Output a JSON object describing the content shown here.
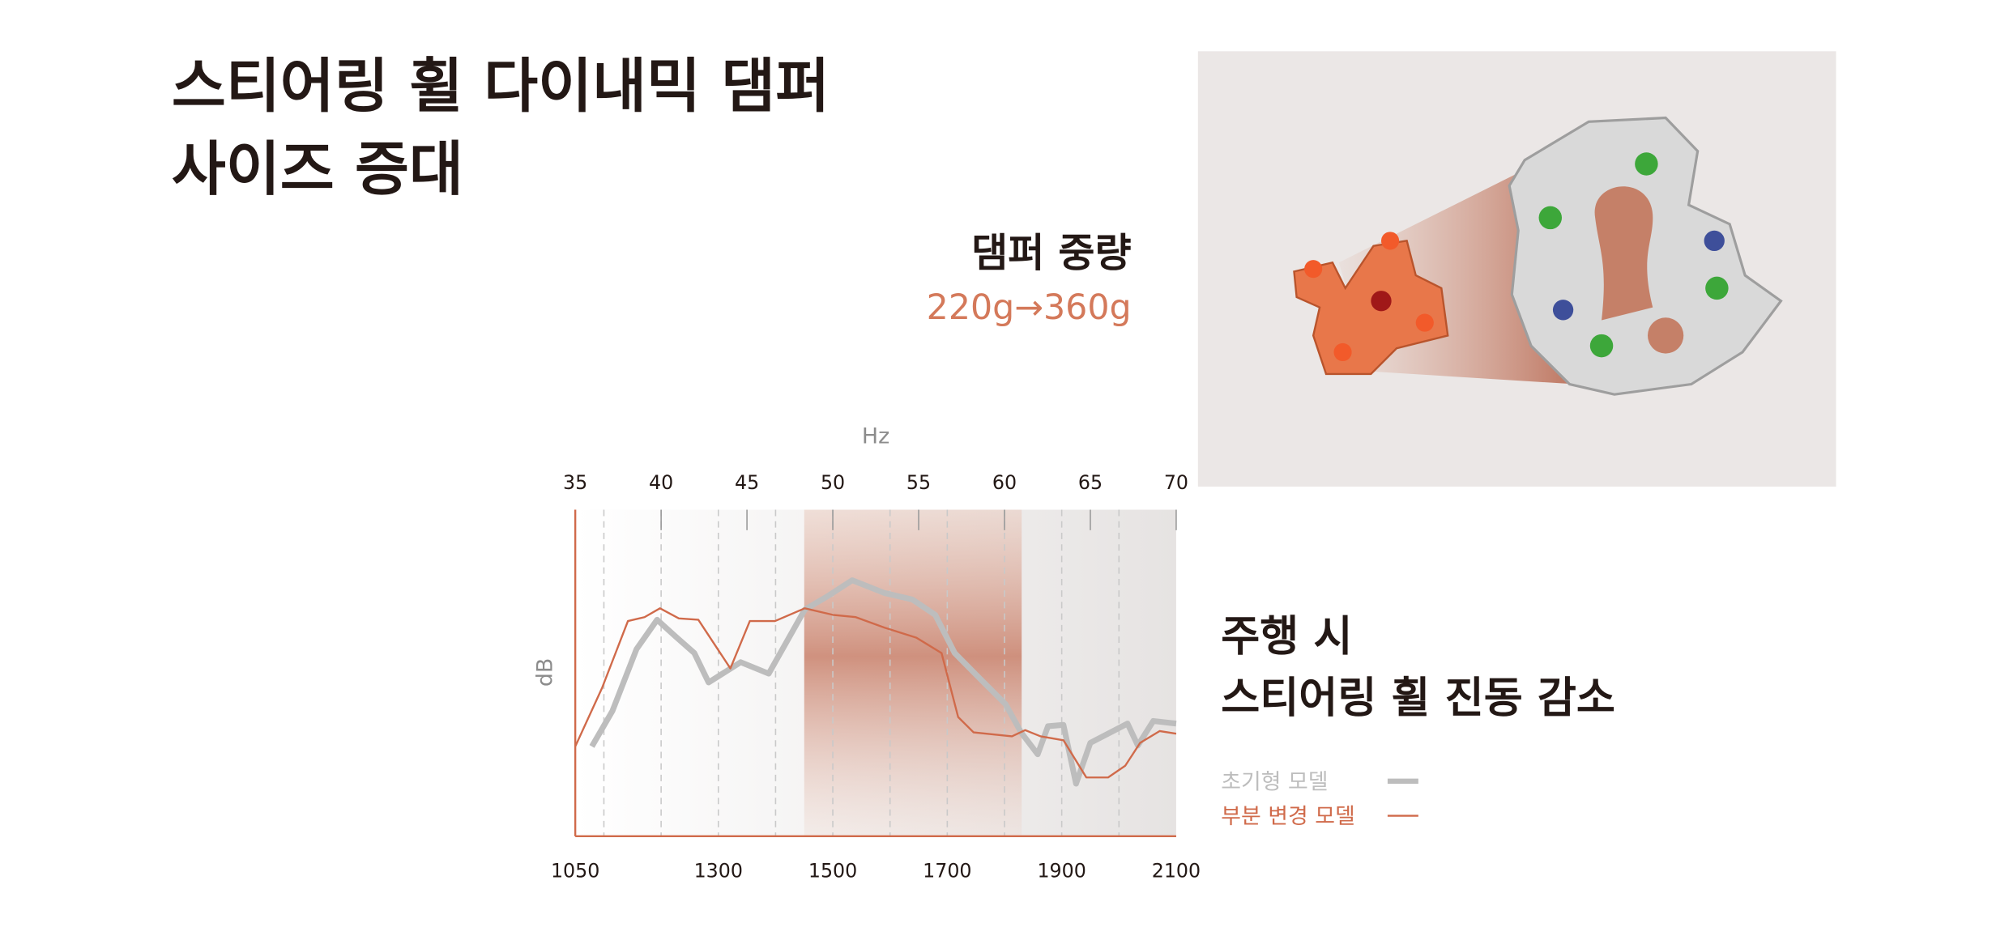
{
  "header": {
    "title_lines": [
      "스티어링 휠 다이내믹 댐퍼",
      "사이즈 증대"
    ]
  },
  "callouts": {
    "weight_label": "댐퍼 중량",
    "weight_change": "220g→360g",
    "effect_lines": [
      "주행 시",
      "스티어링 휠 진동 감소"
    ]
  },
  "chart_data": {
    "type": "line",
    "xlim": [
      1050,
      2100
    ],
    "xticks": [
      1050,
      1300,
      1500,
      1700,
      1900,
      2100
    ],
    "x_minor_ticks": [
      1100,
      1200,
      1300,
      1400,
      1500,
      1600,
      1700,
      1800,
      1900,
      2000
    ],
    "x2label": "Hz",
    "x2lim": [
      35,
      70
    ],
    "x2ticks": [
      35,
      40,
      45,
      50,
      55,
      60,
      65,
      70
    ],
    "ylabel": "dB",
    "ylim": [
      0,
      100
    ],
    "highlight": [
      1450,
      1830
    ],
    "series": [
      {
        "name": "초기형 모델",
        "color": "#bdbdbd",
        "x": [
          1079,
          1115,
          1157,
          1193,
          1225,
          1258,
          1283,
          1339,
          1388,
          1451,
          1489,
          1534,
          1590,
          1639,
          1679,
          1713,
          1753,
          1802,
          1829,
          1858,
          1876,
          1903,
          1925,
          1950,
          2015,
          2033,
          2060,
          2100
        ],
        "values": [
          27.5,
          38.4,
          57.3,
          66.3,
          61.2,
          56.1,
          47.1,
          53.3,
          49.8,
          69.4,
          73.3,
          78.4,
          74.5,
          72.5,
          67.8,
          56.1,
          49.0,
          40.4,
          31.8,
          25.1,
          33.7,
          34.1,
          16.1,
          28.6,
          34.5,
          27.8,
          35.3,
          34.5
        ]
      },
      {
        "name": "부분 변경 모델",
        "color": "#d06a4a",
        "x": [
          1050,
          1097,
          1142,
          1171,
          1198,
          1231,
          1265,
          1321,
          1355,
          1399,
          1451,
          1500,
          1540,
          1590,
          1646,
          1690,
          1719,
          1746,
          1813,
          1836,
          1863,
          1903,
          1943,
          1981,
          2011,
          2037,
          2071,
          2100
        ],
        "values": [
          27.5,
          45.5,
          65.9,
          67.1,
          69.8,
          66.7,
          66.3,
          51.4,
          65.9,
          65.9,
          69.8,
          67.8,
          67.1,
          63.9,
          60.8,
          56.1,
          36.5,
          31.8,
          30.6,
          32.5,
          30.6,
          29.4,
          18.0,
          18.0,
          21.6,
          28.6,
          32.2,
          31.4
        ]
      }
    ]
  }
}
